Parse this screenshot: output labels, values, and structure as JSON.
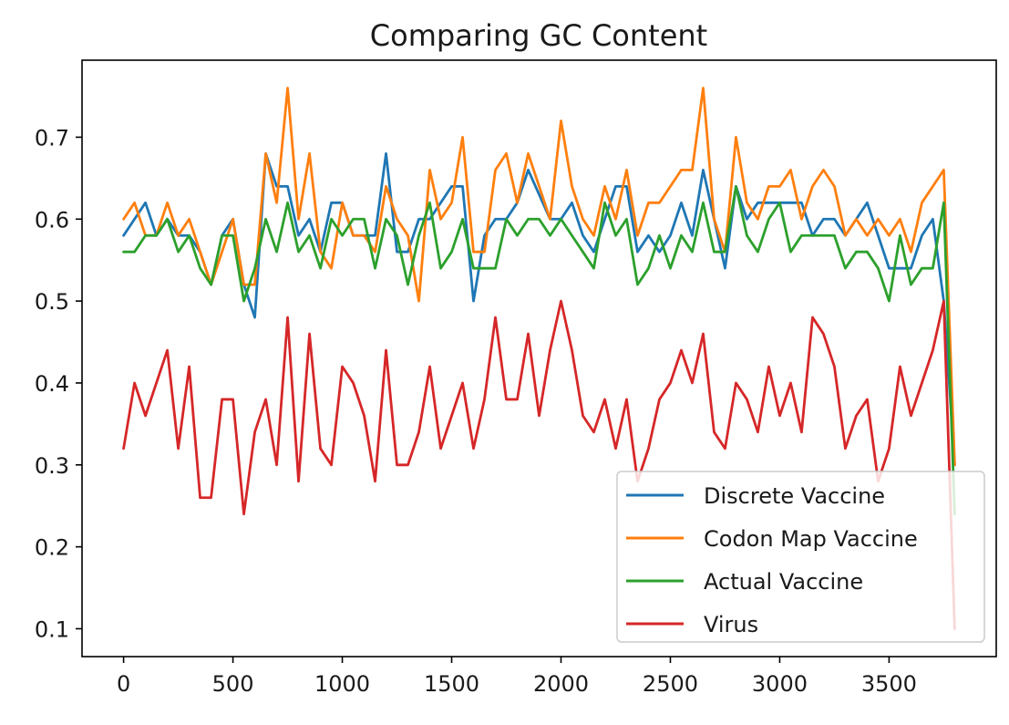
{
  "chart_data": {
    "type": "line",
    "title": "Comparing GC Content",
    "xlabel": "",
    "ylabel": "",
    "xlim": [
      -190,
      3990
    ],
    "ylim": [
      0.066,
      0.794
    ],
    "xticks": [
      0,
      500,
      1000,
      1500,
      2000,
      2500,
      3000,
      3500
    ],
    "yticks": [
      0.1,
      0.2,
      0.3,
      0.4,
      0.5,
      0.6,
      0.7
    ],
    "grid": false,
    "legend": "lower-right",
    "x": [
      0,
      50,
      100,
      150,
      200,
      250,
      300,
      350,
      400,
      450,
      500,
      550,
      600,
      650,
      700,
      750,
      800,
      850,
      900,
      950,
      1000,
      1050,
      1100,
      1150,
      1200,
      1250,
      1300,
      1350,
      1400,
      1450,
      1500,
      1550,
      1600,
      1650,
      1700,
      1750,
      1800,
      1850,
      1900,
      1950,
      2000,
      2050,
      2100,
      2150,
      2200,
      2250,
      2300,
      2350,
      2400,
      2450,
      2500,
      2550,
      2600,
      2650,
      2700,
      2750,
      2800,
      2850,
      2900,
      2950,
      3000,
      3050,
      3100,
      3150,
      3200,
      3250,
      3300,
      3350,
      3400,
      3450,
      3500,
      3550,
      3600,
      3650,
      3700,
      3750,
      3800
    ],
    "series": [
      {
        "name": "Discrete Vaccine",
        "color": "#1f77b4",
        "values": [
          0.58,
          0.6,
          0.62,
          0.58,
          0.6,
          0.58,
          0.58,
          0.56,
          0.52,
          0.58,
          0.6,
          0.52,
          0.48,
          0.68,
          0.64,
          0.64,
          0.58,
          0.6,
          0.56,
          0.62,
          0.62,
          0.58,
          0.58,
          0.58,
          0.68,
          0.56,
          0.56,
          0.6,
          0.6,
          0.62,
          0.64,
          0.64,
          0.5,
          0.58,
          0.6,
          0.6,
          0.62,
          0.66,
          0.63,
          0.6,
          0.6,
          0.62,
          0.58,
          0.56,
          0.6,
          0.64,
          0.64,
          0.56,
          0.58,
          0.56,
          0.58,
          0.62,
          0.58,
          0.66,
          0.6,
          0.54,
          0.64,
          0.6,
          0.62,
          0.62,
          0.62,
          0.62,
          0.62,
          0.58,
          0.6,
          0.6,
          0.58,
          0.6,
          0.62,
          0.58,
          0.54,
          0.54,
          0.54,
          0.58,
          0.6,
          0.5,
          0.3
        ]
      },
      {
        "name": "Codon Map Vaccine",
        "color": "#ff7f0e",
        "values": [
          0.6,
          0.62,
          0.58,
          0.58,
          0.62,
          0.58,
          0.6,
          0.56,
          0.52,
          0.56,
          0.6,
          0.52,
          0.52,
          0.68,
          0.62,
          0.76,
          0.6,
          0.68,
          0.56,
          0.54,
          0.62,
          0.58,
          0.58,
          0.56,
          0.64,
          0.6,
          0.58,
          0.5,
          0.66,
          0.6,
          0.62,
          0.7,
          0.56,
          0.56,
          0.66,
          0.68,
          0.62,
          0.68,
          0.64,
          0.6,
          0.72,
          0.64,
          0.6,
          0.58,
          0.64,
          0.6,
          0.66,
          0.58,
          0.62,
          0.62,
          0.64,
          0.66,
          0.66,
          0.76,
          0.6,
          0.56,
          0.7,
          0.62,
          0.6,
          0.64,
          0.64,
          0.66,
          0.6,
          0.64,
          0.66,
          0.64,
          0.58,
          0.6,
          0.58,
          0.6,
          0.58,
          0.6,
          0.56,
          0.62,
          0.64,
          0.66,
          0.3
        ]
      },
      {
        "name": "Actual Vaccine",
        "color": "#2ca02c",
        "values": [
          0.56,
          0.56,
          0.58,
          0.58,
          0.6,
          0.56,
          0.58,
          0.54,
          0.52,
          0.58,
          0.58,
          0.5,
          0.54,
          0.6,
          0.56,
          0.62,
          0.56,
          0.58,
          0.54,
          0.6,
          0.58,
          0.6,
          0.6,
          0.54,
          0.6,
          0.58,
          0.52,
          0.58,
          0.62,
          0.54,
          0.56,
          0.6,
          0.54,
          0.54,
          0.54,
          0.6,
          0.58,
          0.6,
          0.6,
          0.58,
          0.6,
          0.58,
          0.56,
          0.54,
          0.62,
          0.58,
          0.6,
          0.52,
          0.54,
          0.58,
          0.54,
          0.58,
          0.56,
          0.62,
          0.56,
          0.56,
          0.64,
          0.58,
          0.56,
          0.6,
          0.62,
          0.56,
          0.58,
          0.58,
          0.58,
          0.58,
          0.54,
          0.56,
          0.56,
          0.54,
          0.5,
          0.58,
          0.52,
          0.54,
          0.54,
          0.62,
          0.24
        ]
      },
      {
        "name": "Virus",
        "color": "#d62728",
        "values": [
          0.32,
          0.4,
          0.36,
          0.4,
          0.44,
          0.32,
          0.42,
          0.26,
          0.26,
          0.38,
          0.38,
          0.24,
          0.34,
          0.38,
          0.3,
          0.48,
          0.28,
          0.46,
          0.32,
          0.3,
          0.42,
          0.4,
          0.36,
          0.28,
          0.44,
          0.3,
          0.3,
          0.34,
          0.42,
          0.32,
          0.36,
          0.4,
          0.32,
          0.38,
          0.48,
          0.38,
          0.38,
          0.46,
          0.36,
          0.44,
          0.5,
          0.44,
          0.36,
          0.34,
          0.38,
          0.32,
          0.38,
          0.28,
          0.32,
          0.38,
          0.4,
          0.44,
          0.4,
          0.46,
          0.34,
          0.32,
          0.4,
          0.38,
          0.34,
          0.42,
          0.36,
          0.4,
          0.34,
          0.48,
          0.46,
          0.42,
          0.32,
          0.36,
          0.38,
          0.28,
          0.32,
          0.42,
          0.36,
          0.4,
          0.44,
          0.5,
          0.1
        ]
      }
    ]
  }
}
